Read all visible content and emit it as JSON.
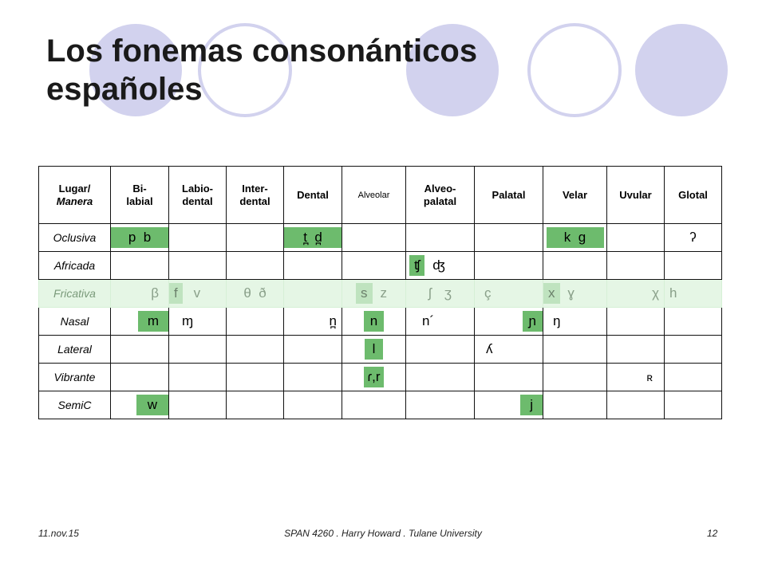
{
  "slide": {
    "title": "Los fonemas consonánticos españoles",
    "footer_date": "11.nov.15",
    "footer_center": "SPAN 4260 . Harry Howard . Tulane University",
    "footer_page": "12",
    "accent_color": "#d2d2ee"
  },
  "table": {
    "headers": {
      "lugar": "Lugar/",
      "manera": "Manera",
      "bilabial": [
        "Bi-",
        "labial"
      ],
      "labiodental": [
        "Labio-",
        "dental"
      ],
      "interdental": [
        "Inter-",
        "dental"
      ],
      "dental": "Dental",
      "alveolar": "Alveolar",
      "alveopalatal": [
        "Alveo-",
        "palatal"
      ],
      "palatal": "Palatal",
      "velar": "Velar",
      "uvular": "Uvular",
      "glotal": "Glotal"
    },
    "rows": {
      "oclusiva": {
        "label": "Oclusiva",
        "bilabial": "p  b",
        "dental": "t̪  d̪",
        "velar": "k  g",
        "glotal": "ʔ"
      },
      "africada": {
        "label": "Africada",
        "alveopalatal": [
          "ʧ",
          "ʤ"
        ]
      },
      "fricativa": {
        "label": "Fricativa",
        "bilabial": "β",
        "labiodental": [
          "f",
          "v"
        ],
        "interdental": "θ  ð",
        "alveolar": [
          "s",
          "z"
        ],
        "alveopalatal": [
          "ʃ",
          "ʒ"
        ],
        "palatal": "ç",
        "velar": [
          "x",
          "ɣ"
        ],
        "uvular": "χ",
        "glotal": "h"
      },
      "nasal": {
        "label": "Nasal",
        "bilabial": "m",
        "labiodental": "ɱ",
        "dental": "n̪",
        "alveolar": "n",
        "alveopalatal": "n´",
        "palatal": "ɲ",
        "velar": "ŋ"
      },
      "lateral": {
        "label": "Lateral",
        "alveolar": "l",
        "palatal": "ʎ"
      },
      "vibrante": {
        "label": "Vibrante",
        "alveolar": "ɾ,r",
        "uvular": "ʀ"
      },
      "semic": {
        "label": "SemiC",
        "bilabial": "w",
        "palatal": "j"
      }
    }
  }
}
